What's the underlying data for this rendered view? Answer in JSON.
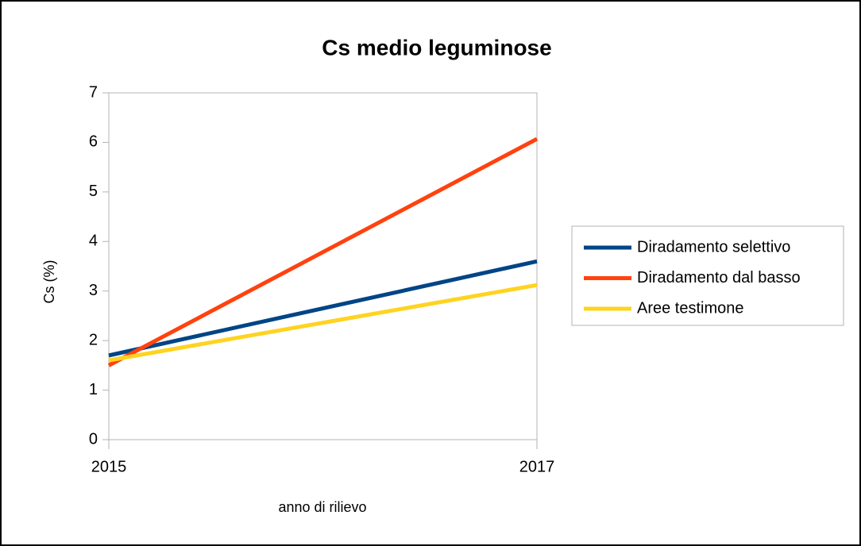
{
  "chart_data": {
    "type": "line",
    "title": "Cs medio leguminose",
    "x_label": "anno di rilievo",
    "y_label": "Cs (%)",
    "x": [
      2015,
      2017
    ],
    "xlim": [
      2015,
      2017
    ],
    "xticks": [
      2015,
      2017
    ],
    "ylim": [
      0,
      7
    ],
    "yticks": [
      0,
      1,
      2,
      3,
      4,
      5,
      6,
      7
    ],
    "legend": "right",
    "series": [
      {
        "name": "Diradamento selettivo",
        "color": "#004586",
        "values": [
          1.7,
          3.6
        ]
      },
      {
        "name": "Diradamento dal basso",
        "color": "#ff420e",
        "values": [
          1.5,
          6.07
        ]
      },
      {
        "name": "Aree testimone",
        "color": "#ffd320",
        "values": [
          1.6,
          3.12
        ]
      }
    ]
  }
}
